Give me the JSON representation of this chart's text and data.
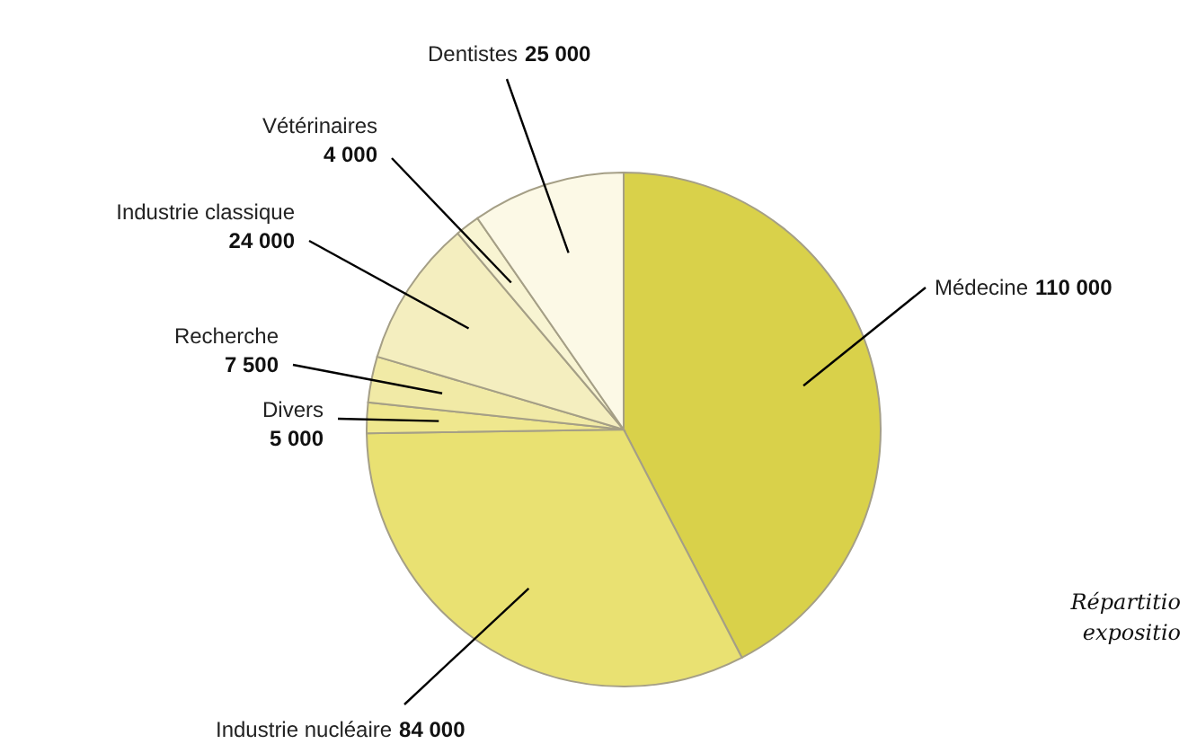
{
  "chart_data": {
    "type": "pie",
    "categories": [
      "Médecine",
      "Industrie nucléaire",
      "Divers",
      "Recherche",
      "Industrie classique",
      "Vétérinaires",
      "Dentistes"
    ],
    "values": [
      110000,
      84000,
      5000,
      7500,
      24000,
      4000,
      25000
    ],
    "value_labels": [
      "110 000",
      "84 000",
      "5 000",
      "7 500",
      "24 000",
      "4 000",
      "25 000"
    ],
    "colors": [
      "#d9d14a",
      "#e9e172",
      "#efe78e",
      "#f1eaa6",
      "#f4eebf",
      "#f8f4d2",
      "#fcf9e6"
    ],
    "annotations": [
      "Répartitio",
      "expositio"
    ]
  }
}
